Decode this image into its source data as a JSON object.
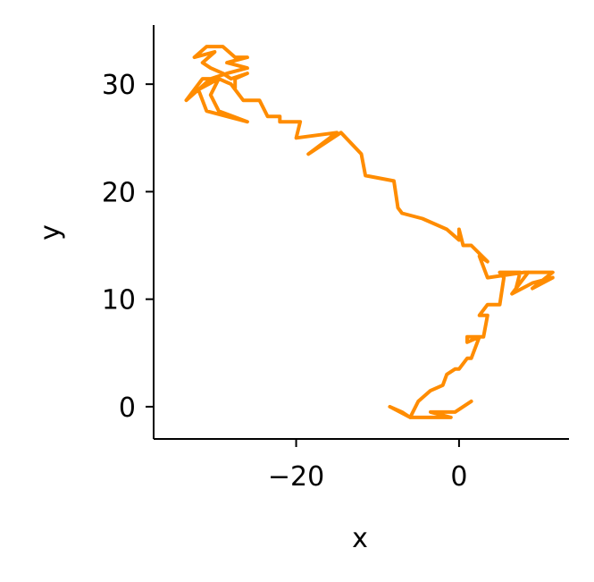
{
  "chart_data": {
    "type": "line",
    "title": "",
    "xlabel": "x",
    "ylabel": "y",
    "xlim": [
      -37.5,
      13.5
    ],
    "ylim": [
      -3,
      35.5
    ],
    "xticks": [
      -20,
      0
    ],
    "xtick_labels": [
      "−20",
      "0"
    ],
    "yticks": [
      0,
      10,
      20,
      30
    ],
    "ytick_labels": [
      "0",
      "10",
      "20",
      "30"
    ],
    "grid": false,
    "legend": "none",
    "line_color": "#ff8c00",
    "series": [
      {
        "x": [
          1.5,
          -0.5,
          -3.5,
          -1.0,
          -5.0,
          -6.0,
          -7.0,
          -8.5,
          -6.0,
          -5.0,
          -3.5,
          -2.0,
          -1.5,
          -0.5,
          0.0,
          1.0,
          1.5,
          2.5,
          1.0,
          1.0,
          3.0,
          3.5,
          3.5,
          2.5,
          3.5,
          5.0,
          5.5,
          5.0,
          7.5,
          7.0,
          8.5,
          6.5,
          9.0,
          11.5,
          9.0,
          11.5,
          8.0,
          3.5,
          2.5,
          3.5,
          1.5,
          0.5,
          0.0,
          0.0,
          -1.5,
          -4.5,
          -7.0,
          -7.5,
          -8.0,
          -11.5,
          -12.0,
          -14.5,
          -18.5,
          -15.0,
          -20.0,
          -19.5,
          -22.0,
          -22.0,
          -23.5,
          -24.5,
          -26.5,
          -28.0,
          -29.5,
          -30.5,
          -29.5,
          -26.0,
          -31.0,
          -32.0,
          -29.5,
          -31.5,
          -33.5,
          -32.0,
          -30.5,
          -28.5,
          -26.0,
          -28.5,
          -26.0,
          -27.5,
          -29.0,
          -31.0,
          -32.5,
          -30.0,
          -31.5,
          -30.5,
          -29.0,
          -28.0,
          -26.0,
          -27.5,
          -27.5,
          -28.0,
          -29.5,
          -30.0
        ],
        "y": [
          0.5,
          -0.5,
          -0.5,
          -1.0,
          -1.0,
          -1.0,
          -0.5,
          0.0,
          -1.0,
          0.5,
          1.5,
          2.0,
          3.0,
          3.5,
          3.5,
          4.5,
          4.5,
          6.5,
          6.0,
          6.5,
          6.5,
          8.5,
          8.5,
          8.5,
          9.5,
          9.5,
          12.0,
          12.5,
          12.5,
          11.0,
          12.5,
          10.5,
          11.5,
          12.0,
          11.0,
          12.5,
          12.5,
          12.0,
          14.0,
          13.5,
          15.0,
          15.0,
          16.5,
          15.5,
          16.5,
          17.5,
          18.0,
          18.5,
          21.0,
          21.5,
          23.5,
          25.5,
          23.5,
          25.5,
          25.0,
          26.5,
          26.5,
          27.0,
          27.0,
          28.5,
          28.5,
          30.0,
          30.5,
          29.0,
          27.5,
          26.5,
          27.5,
          29.5,
          30.5,
          30.5,
          28.5,
          29.5,
          30.5,
          31.0,
          31.5,
          32.0,
          32.5,
          32.5,
          33.5,
          33.5,
          32.5,
          33.0,
          32.0,
          31.5,
          31.0,
          30.5,
          31.0,
          30.5,
          29.5,
          30.0,
          30.5,
          30.5
        ]
      }
    ]
  }
}
